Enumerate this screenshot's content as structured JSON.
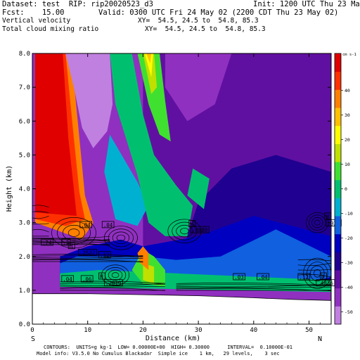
{
  "header": {
    "dataset": "Dataset: test  RIP: rip20020523_d3",
    "init": "Init: 1200 UTC Thu 23 May 02",
    "fcst": "Fcst:    15.00",
    "valid": "Valid: 0300 UTC Fri 24 May 02 (2200 CDT Thu 23 May 02)",
    "field1": "Vertical velocity",
    "xy1": "XY=  54.5, 24.5 to  54.8, 85.3",
    "field2": "Total cloud mixing ratio",
    "xy2": "XY=  54.5, 24.5 to  54.8, 85.3"
  },
  "footer": {
    "line1": "CONTOURS:  UNITS=g kg-1  LOW= 0.00000E+00  HIGH= 0.30000      INTERVAL=  0.10000E-01",
    "line2": "Model info: V3.5.0 No Cumulus Blackadar  Simple ice    1 km,   29 levels,    3 sec"
  },
  "endpoints": {
    "left": "S",
    "right": "N"
  },
  "colors": {
    "scale": [
      "#c080e0",
      "#9030c0",
      "#6010a0",
      "#200090",
      "#0000c0",
      "#1060e0",
      "#00b0d0",
      "#00c070",
      "#40e030",
      "#c0e000",
      "#ffff00",
      "#ffc000",
      "#ff8000",
      "#ff3000",
      "#e00000"
    ],
    "terrain": "#ffffff",
    "contour": "#000000"
  },
  "chart_data": {
    "type": "heatmap",
    "xlabel": "Distance (km)",
    "ylabel": "Height (km)",
    "xlim": [
      0,
      54
    ],
    "ylim": [
      0,
      8
    ],
    "xticks": [
      0,
      10,
      20,
      30,
      40,
      50
    ],
    "yticks": [
      "0.0",
      "1.0",
      "2.0",
      "3.0",
      "4.0",
      "5.0",
      "6.0",
      "7.0",
      "8.0"
    ],
    "colorbar": {
      "unit": "cm s-1",
      "ticks": [
        40,
        30,
        20,
        10,
        0,
        -10,
        -20,
        -30,
        -40,
        -50
      ],
      "range": [
        -55,
        55
      ]
    },
    "regions": [
      {
        "level": "#c080e0",
        "points": [
          [
            0,
            0
          ],
          [
            54,
            0
          ],
          [
            54,
            8
          ],
          [
            0,
            8
          ]
        ]
      },
      {
        "level": "#9030c0",
        "points": [
          [
            0,
            0
          ],
          [
            54,
            0
          ],
          [
            54,
            8
          ],
          [
            0,
            8
          ]
        ]
      },
      {
        "level": "#6010a0",
        "points": [
          [
            20,
            2.2
          ],
          [
            54,
            1.9
          ],
          [
            54,
            8
          ],
          [
            36,
            8
          ],
          [
            33,
            6.5
          ],
          [
            28,
            6
          ],
          [
            24,
            7
          ],
          [
            24,
            8
          ],
          [
            20,
            8
          ]
        ]
      },
      {
        "level": "#200090",
        "points": [
          [
            26,
            1.6
          ],
          [
            40,
            2.6
          ],
          [
            54,
            1.8
          ],
          [
            54,
            4.5
          ],
          [
            44,
            5
          ],
          [
            36,
            4.6
          ],
          [
            30,
            3.6
          ]
        ]
      },
      {
        "level": "#0000c0",
        "points": [
          [
            5,
            1.2
          ],
          [
            54,
            1.0
          ],
          [
            54,
            2.6
          ],
          [
            40,
            3.2
          ],
          [
            30,
            2.6
          ],
          [
            20,
            2.3
          ],
          [
            16,
            2.5
          ],
          [
            10,
            2.3
          ],
          [
            5,
            2
          ]
        ]
      },
      {
        "level": "#1060e0",
        "points": [
          [
            5,
            1.15
          ],
          [
            48,
            1.1
          ],
          [
            54,
            1.4
          ],
          [
            54,
            2.0
          ],
          [
            44,
            2.8
          ],
          [
            34,
            2.0
          ],
          [
            26,
            1.9
          ],
          [
            20,
            2.0
          ],
          [
            14,
            2.0
          ],
          [
            8,
            2.0
          ],
          [
            5,
            1.8
          ]
        ]
      },
      {
        "level": "#00b0d0",
        "points": [
          [
            14,
            5.6
          ],
          [
            19,
            4.2
          ],
          [
            21,
            3.5
          ],
          [
            19,
            2.9
          ],
          [
            15,
            3.1
          ],
          [
            13,
            4.5
          ]
        ]
      },
      {
        "level": "#00c070",
        "points": [
          [
            5,
            1.1
          ],
          [
            54,
            0.95
          ],
          [
            54,
            1.3
          ],
          [
            40,
            1.4
          ],
          [
            26,
            1.5
          ],
          [
            12,
            1.6
          ],
          [
            5,
            1.5
          ]
        ]
      },
      {
        "level": "#00c070",
        "points": [
          [
            18,
            8
          ],
          [
            20,
            6.2
          ],
          [
            22,
            5
          ],
          [
            26,
            4.1
          ],
          [
            29,
            3.5
          ],
          [
            28,
            2.6
          ],
          [
            24,
            2.6
          ],
          [
            21,
            3.0
          ],
          [
            19,
            4.4
          ],
          [
            15,
            6.5
          ],
          [
            14,
            8
          ]
        ]
      },
      {
        "level": "#00c070",
        "points": [
          [
            28,
            3.8
          ],
          [
            31,
            3.4
          ],
          [
            32,
            4.3
          ],
          [
            29,
            4.6
          ]
        ]
      },
      {
        "level": "#40e030",
        "points": [
          [
            19,
            8
          ],
          [
            21,
            6.5
          ],
          [
            23,
            5.6
          ],
          [
            25,
            5.4
          ],
          [
            24,
            6.6
          ],
          [
            23,
            8
          ]
        ]
      },
      {
        "level": "#40e030",
        "points": [
          [
            20,
            1.2
          ],
          [
            24,
            1.1
          ],
          [
            24,
            1.6
          ],
          [
            22,
            2.0
          ],
          [
            20,
            2.2
          ],
          [
            18,
            1.6
          ]
        ]
      },
      {
        "level": "#c0e000",
        "points": [
          [
            20,
            8
          ],
          [
            21.5,
            6.8
          ],
          [
            22.5,
            7.0
          ],
          [
            22,
            8
          ]
        ]
      },
      {
        "level": "#c0e000",
        "points": [
          [
            20,
            1.3
          ],
          [
            22,
            1.2
          ],
          [
            22,
            1.7
          ],
          [
            20,
            1.8
          ]
        ]
      },
      {
        "level": "#ffff00",
        "points": [
          [
            20.3,
            8
          ],
          [
            21.5,
            7.3
          ],
          [
            21.8,
            8
          ]
        ]
      },
      {
        "level": "#ffc000",
        "points": [
          [
            20.6,
            8
          ],
          [
            21.3,
            7.7
          ],
          [
            21.5,
            8
          ]
        ]
      },
      {
        "level": "#ff8000",
        "points": [
          [
            0.5,
            8
          ],
          [
            7,
            8
          ],
          [
            8.5,
            5.5
          ],
          [
            9.5,
            3.8
          ],
          [
            11,
            3.0
          ],
          [
            9,
            2.5
          ],
          [
            4,
            2.8
          ],
          [
            0.5,
            3.0
          ]
        ]
      },
      {
        "level": "#ff3000",
        "points": [
          [
            0.5,
            8
          ],
          [
            6,
            8
          ],
          [
            7.5,
            5.5
          ],
          [
            8.5,
            3.9
          ],
          [
            9.5,
            3.1
          ],
          [
            6,
            2.9
          ],
          [
            0.5,
            3.1
          ]
        ]
      },
      {
        "level": "#e00000",
        "points": [
          [
            0.5,
            8
          ],
          [
            5.5,
            8
          ],
          [
            6.5,
            5.5
          ],
          [
            7.5,
            4.0
          ],
          [
            8,
            3.2
          ],
          [
            0.5,
            3.3
          ]
        ]
      },
      {
        "level": "#c080e0",
        "points": [
          [
            6,
            8
          ],
          [
            14,
            8
          ],
          [
            14.5,
            6.5
          ],
          [
            13.5,
            5.7
          ],
          [
            11,
            5.2
          ],
          [
            9,
            5.8
          ],
          [
            7.5,
            7.0
          ]
        ]
      },
      {
        "level": "#ff8000",
        "points": [
          [
            19.5,
            1.8
          ],
          [
            21,
            1.6
          ],
          [
            21,
            2.1
          ],
          [
            20,
            2.3
          ],
          [
            19,
            2.1
          ]
        ]
      }
    ],
    "contour_bands": [
      {
        "x0": 0,
        "x1": 14,
        "y0": 2.35,
        "y1": 2.55,
        "lines": 7
      },
      {
        "x0": 0,
        "x1": 20,
        "y0": 1.85,
        "y1": 2.05,
        "lines": 6
      },
      {
        "x0": 5,
        "x1": 24,
        "y0": 1.0,
        "y1": 1.25,
        "lines": 6
      },
      {
        "x0": 26,
        "x1": 54,
        "y0": 1.0,
        "y1": 1.2,
        "lines": 6
      },
      {
        "x0": 48,
        "x1": 54,
        "y0": 1.3,
        "y1": 1.9,
        "lines": 5
      },
      {
        "x0": 0,
        "x1": 3,
        "y0": 2.6,
        "y1": 3.5,
        "lines": 6
      }
    ],
    "contour_rings": [
      {
        "cx": 7.5,
        "cy": 2.7,
        "rx": 4,
        "ry": 0.45
      },
      {
        "cx": 16,
        "cy": 2.55,
        "rx": 3,
        "ry": 0.35
      },
      {
        "cx": 15,
        "cy": 1.45,
        "rx": 2.5,
        "ry": 0.3
      },
      {
        "cx": 27.5,
        "cy": 2.75,
        "rx": 3,
        "ry": 0.35
      },
      {
        "cx": 51.5,
        "cy": 3.0,
        "rx": 2,
        "ry": 0.3
      },
      {
        "cx": 51.5,
        "cy": 1.5,
        "rx": 2.5,
        "ry": 0.45
      }
    ],
    "annotations": [
      {
        "text": ".24",
        "x": 1.8,
        "y": 2.35
      },
      {
        "text": ".2",
        "x": 5.5,
        "y": 2.35
      },
      {
        "text": ".04",
        "x": 8.8,
        "y": 2.87
      },
      {
        "text": ".04",
        "x": 12.8,
        "y": 2.87
      },
      {
        "text": "H",
        "x": 6.7,
        "y": 2.25
      },
      {
        "text": ".2527",
        "x": 8.5,
        "y": 2.05
      },
      {
        "text": ".12",
        "x": 12.2,
        "y": 1.98
      },
      {
        "text": ".04",
        "x": 5.5,
        "y": 1.27
      },
      {
        "text": ".06",
        "x": 9.0,
        "y": 1.27
      },
      {
        "text": "H",
        "x": 12.2,
        "y": 1.35
      },
      {
        "text": ".2019",
        "x": 13.2,
        "y": 1.15
      },
      {
        "text": "H",
        "x": 28.5,
        "y": 2.9
      },
      {
        "text": ".0880",
        "x": 28.8,
        "y": 2.72
      },
      {
        "text": ".03",
        "x": 36.5,
        "y": 1.33
      },
      {
        "text": ".04",
        "x": 40.8,
        "y": 1.33
      },
      {
        "text": ".12",
        "x": 48.2,
        "y": 1.33
      },
      {
        "text": "H",
        "x": 53.0,
        "y": 3.12
      },
      {
        "text": ".024",
        "x": 53.3,
        "y": 2.92
      },
      {
        "text": "H",
        "x": 52.2,
        "y": 1.35
      },
      {
        "text": ".4836",
        "x": 51.5,
        "y": 1.15
      }
    ],
    "terrain": [
      [
        0,
        0.9
      ],
      [
        10,
        0.9
      ],
      [
        20,
        0.87
      ],
      [
        30,
        0.84
      ],
      [
        40,
        0.78
      ],
      [
        47,
        0.73
      ],
      [
        54,
        0.7
      ]
    ]
  }
}
